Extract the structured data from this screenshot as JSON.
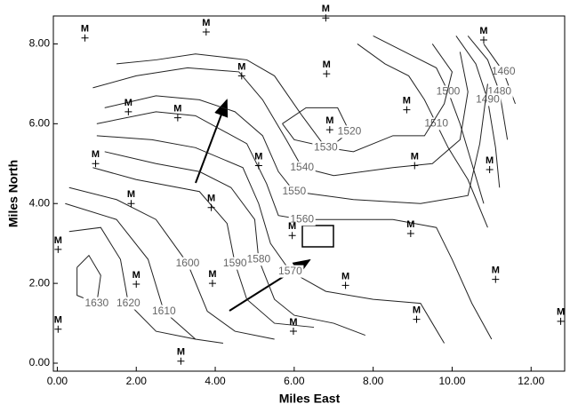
{
  "chart_data": {
    "type": "contour",
    "xlabel": "Miles East",
    "ylabel": "Miles North",
    "xlim": [
      -0.1,
      12.85
    ],
    "ylim": [
      -0.2,
      8.7
    ],
    "xticks": [
      {
        "value": 0,
        "label": "0.00"
      },
      {
        "value": 2,
        "label": "2.00"
      },
      {
        "value": 4,
        "label": "4.00"
      },
      {
        "value": 6,
        "label": "6.00"
      },
      {
        "value": 8,
        "label": "8.00"
      },
      {
        "value": 10,
        "label": "10.00"
      },
      {
        "value": 12,
        "label": "12.00"
      }
    ],
    "yticks": [
      {
        "value": 0,
        "label": "0.00"
      },
      {
        "value": 2,
        "label": "2.00"
      },
      {
        "value": 4,
        "label": "4.00"
      },
      {
        "value": 6,
        "label": "6.00"
      },
      {
        "value": 8,
        "label": "8.00"
      }
    ],
    "wells": {
      "label": "M",
      "color": "#000000",
      "x": [
        0.7,
        3.77,
        6.8,
        10.8,
        4.67,
        6.82,
        1.8,
        3.05,
        8.85,
        6.9,
        0.97,
        5.1,
        9.05,
        10.95,
        1.87,
        3.9,
        5.95,
        8.95,
        0.02,
        2.0,
        3.93,
        7.3,
        11.1,
        0.02,
        5.98,
        9.1,
        12.75,
        3.13
      ],
      "y": [
        8.15,
        8.3,
        8.65,
        8.1,
        7.2,
        7.25,
        6.3,
        6.15,
        6.35,
        5.85,
        5.0,
        4.95,
        4.95,
        4.85,
        4.0,
        3.9,
        3.2,
        3.25,
        2.85,
        1.98,
        2.0,
        1.95,
        2.1,
        0.85,
        0.8,
        1.1,
        1.05,
        0.05
      ]
    },
    "contours": [
      {
        "level": 1460,
        "x": [
          10.8,
          11.3,
          11.6
        ],
        "y": [
          8.0,
          7.3,
          6.5
        ]
      },
      {
        "level": 1480,
        "x": [
          10.4,
          10.9,
          11.2,
          11.4
        ],
        "y": [
          8.2,
          7.6,
          6.8,
          5.6
        ]
      },
      {
        "level": 1490,
        "x": [
          10.1,
          10.6,
          10.9,
          11.1,
          11.2
        ],
        "y": [
          8.2,
          7.5,
          6.6,
          5.4,
          4.4
        ]
      },
      {
        "level": 1500,
        "x": [
          8.0,
          9.0,
          9.6,
          9.9,
          10.2,
          10.5,
          10.8
        ],
        "y": [
          8.2,
          7.7,
          7.4,
          6.8,
          6.0,
          5.0,
          4.0
        ]
      },
      {
        "level": 1510,
        "x": [
          7.6,
          8.3,
          8.9,
          9.3,
          9.6,
          9.9,
          10.4,
          10.9
        ],
        "y": [
          8.0,
          7.5,
          7.2,
          6.6,
          6.0,
          5.4,
          4.6,
          3.4
        ]
      },
      {
        "level": 1520,
        "x": [
          5.7,
          6.3,
          7.1,
          7.4,
          6.9,
          6.0,
          5.7
        ],
        "y": [
          6.0,
          6.4,
          6.4,
          5.8,
          5.4,
          5.6,
          6.0
        ]
      },
      {
        "level": 1530,
        "x": [
          1.5,
          2.5,
          3.5,
          4.8,
          5.5,
          6.2,
          6.8,
          7.5,
          8.5,
          9.3,
          9.8,
          10.0,
          9.5
        ],
        "y": [
          7.5,
          7.6,
          7.75,
          7.6,
          7.2,
          6.2,
          5.4,
          5.3,
          5.7,
          5.7,
          6.5,
          7.3,
          8.0
        ]
      },
      {
        "level": 1540,
        "x": [
          0.9,
          2.0,
          3.3,
          4.6,
          5.2,
          5.8,
          6.2,
          7.0,
          8.5,
          9.5,
          10.2,
          10.4,
          10.2
        ],
        "y": [
          6.9,
          7.2,
          7.4,
          7.3,
          6.6,
          5.6,
          4.9,
          4.7,
          4.9,
          5.0,
          5.6,
          6.8,
          7.8
        ]
      },
      {
        "level": 1550,
        "x": [
          1.2,
          2.5,
          3.6,
          4.5,
          5.2,
          5.6,
          6.0,
          7.5,
          9.2,
          10.4,
          10.7,
          10.9
        ],
        "y": [
          6.4,
          6.7,
          6.6,
          6.3,
          5.7,
          4.8,
          4.3,
          4.1,
          4.0,
          4.2,
          5.5,
          7.0
        ]
      },
      {
        "level": 1560,
        "x": [
          1.0,
          2.5,
          3.5,
          4.8,
          5.3,
          5.6,
          6.2,
          8.5,
          9.6,
          10.0,
          10.5,
          11.0
        ],
        "y": [
          6.0,
          6.3,
          6.2,
          5.5,
          4.5,
          3.7,
          3.6,
          3.6,
          3.4,
          2.6,
          1.5,
          0.6
        ]
      },
      {
        "level": 1570,
        "x": [
          1.0,
          2.4,
          3.5,
          4.7,
          5.1,
          5.4,
          5.9,
          6.8,
          8.0,
          9.2,
          9.5,
          9.8
        ],
        "y": [
          5.7,
          5.6,
          5.4,
          4.9,
          4.0,
          3.0,
          2.3,
          1.8,
          1.6,
          1.5,
          1.0,
          0.5
        ]
      },
      {
        "level": 1580,
        "x": [
          1.2,
          2.5,
          3.6,
          4.4,
          5.0,
          5.1,
          5.5,
          6.0,
          7.0,
          7.8
        ],
        "y": [
          5.3,
          5.0,
          4.8,
          4.4,
          3.6,
          2.6,
          1.6,
          1.2,
          1.0,
          0.7
        ]
      },
      {
        "level": 1590,
        "x": [
          0.9,
          2.0,
          3.6,
          4.3,
          4.5,
          4.8,
          5.5,
          6.5
        ],
        "y": [
          4.9,
          4.6,
          4.3,
          3.5,
          2.5,
          1.6,
          1.0,
          0.9
        ]
      },
      {
        "level": 1600,
        "x": [
          0.3,
          1.5,
          2.5,
          3.3,
          3.8,
          4.5,
          5.5
        ],
        "y": [
          4.4,
          4.1,
          3.6,
          2.5,
          1.3,
          0.8,
          0.6
        ]
      },
      {
        "level": 1610,
        "x": [
          0.2,
          1.5,
          2.3,
          2.7,
          3.5,
          4.2
        ],
        "y": [
          4.0,
          3.6,
          2.6,
          1.3,
          0.6,
          0.5
        ]
      },
      {
        "level": 1620,
        "x": [
          0.3,
          1.1,
          1.6,
          1.8,
          2.5,
          3.5
        ],
        "y": [
          3.3,
          3.4,
          2.6,
          1.5,
          0.8,
          0.6
        ]
      },
      {
        "level": 1630,
        "x": [
          0.5,
          0.8,
          1.1,
          1.0,
          0.5,
          0.5
        ],
        "y": [
          2.4,
          2.7,
          2.2,
          1.5,
          1.7,
          2.4
        ]
      }
    ]
  }
}
